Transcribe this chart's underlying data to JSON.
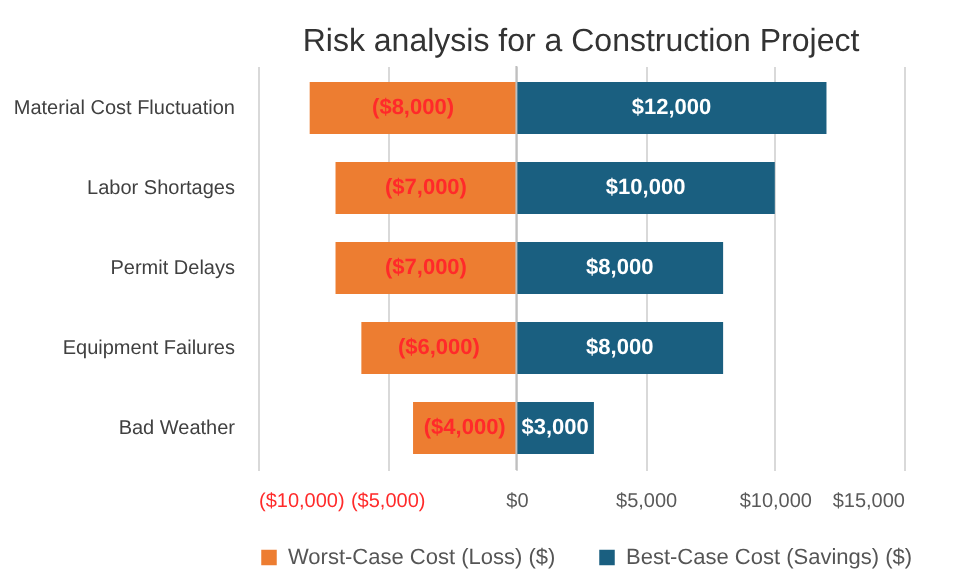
{
  "chart_data": {
    "type": "bar",
    "orientation": "horizontal",
    "stacked": true,
    "title": "Risk analysis for a Construction Project",
    "categories": [
      "Material Cost Fluctuation",
      "Labor Shortages",
      "Permit Delays",
      "Equipment Failures",
      "Bad Weather"
    ],
    "series": [
      {
        "name": "Worst-Case Cost (Loss) ($)",
        "color": "#ed7d31",
        "values": [
          -8000,
          -7000,
          -7000,
          -6000,
          -4000
        ],
        "value_labels": [
          "($8,000)",
          "($7,000)",
          "($7,000)",
          "($6,000)",
          "($4,000)"
        ]
      },
      {
        "name": "Best-Case Cost (Savings) ($)",
        "color": "#1a5f80",
        "values": [
          12000,
          10000,
          8000,
          8000,
          3000
        ],
        "value_labels": [
          "$12,000",
          "$10,000",
          "$8,000",
          "$8,000",
          "$3,000"
        ]
      }
    ],
    "xlim": [
      -10000,
      15000
    ],
    "xticks": [
      {
        "value": -10000,
        "label": "($10,000)"
      },
      {
        "value": -5000,
        "label": "($5,000)"
      },
      {
        "value": 0,
        "label": "$0"
      },
      {
        "value": 5000,
        "label": "$5,000"
      },
      {
        "value": 10000,
        "label": "$10,000"
      },
      {
        "value": 15000,
        "label": "$15,000"
      }
    ],
    "grid": "x",
    "legend": "bottom"
  }
}
